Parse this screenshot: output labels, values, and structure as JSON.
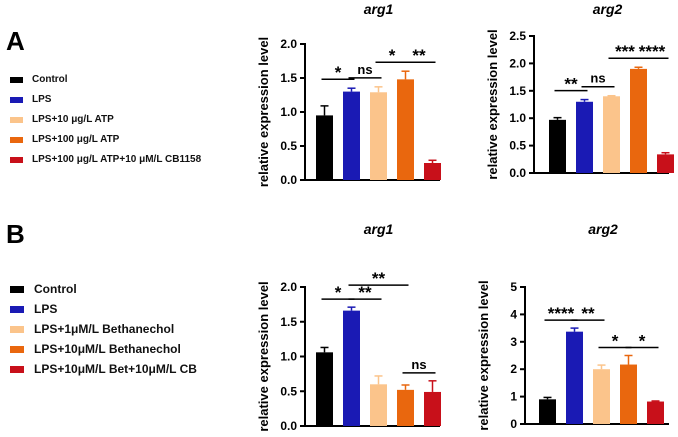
{
  "panels": [
    {
      "letter": "A",
      "legend": [
        {
          "label": "Control",
          "color": "#000000"
        },
        {
          "label": "LPS",
          "color": "#1a1ab4"
        },
        {
          "label": "LPS+10 μg/L ATP",
          "color": "#fbc48b"
        },
        {
          "label": "LPS+100 μg/L ATP",
          "color": "#e9670e"
        },
        {
          "label": "LPS+100 μg/L ATP+10 μM/L CB1158",
          "color": "#c8101a"
        }
      ]
    },
    {
      "letter": "B",
      "legend": [
        {
          "label": "Control",
          "color": "#000000"
        },
        {
          "label": "LPS",
          "color": "#1a1ab4"
        },
        {
          "label": "LPS+1μM/L Bethanechol",
          "color": "#fbc48b"
        },
        {
          "label": "LPS+10μM/L Bethanechol",
          "color": "#e9670e"
        },
        {
          "label": "LPS+10μM/L Bet+10μM/L CB",
          "color": "#c8101a"
        }
      ]
    }
  ],
  "chart_data": [
    {
      "type": "bar",
      "panel": "A",
      "title": "arg1",
      "ylabel": "relative expression level",
      "ylim": [
        0,
        2.0
      ],
      "yticks": [
        0.0,
        0.5,
        1.0,
        1.5,
        2.0
      ],
      "ytick_labels": [
        "0.0",
        "0.5",
        "1.0",
        "1.5",
        "2.0"
      ],
      "values": [
        0.95,
        1.3,
        1.29,
        1.48,
        0.25
      ],
      "errors": [
        0.14,
        0.05,
        0.08,
        0.12,
        0.04
      ],
      "colors": [
        "#000000",
        "#1a1ab4",
        "#fbc48b",
        "#e9670e",
        "#c8101a"
      ],
      "significance": [
        {
          "from": 0,
          "to": 1,
          "label": "*"
        },
        {
          "from": 1,
          "to": 2,
          "label": "ns"
        },
        {
          "from": 2,
          "to": 3,
          "label": "*"
        },
        {
          "from": 3,
          "to": 4,
          "label": "**"
        }
      ]
    },
    {
      "type": "bar",
      "panel": "A",
      "title": "arg2",
      "ylabel": "relative expression level",
      "ylim": [
        0,
        2.5
      ],
      "yticks": [
        0.0,
        0.5,
        1.0,
        1.5,
        2.0,
        2.5
      ],
      "ytick_labels": [
        "0.0",
        "0.5",
        "1.0",
        "1.5",
        "2.0",
        "2.5"
      ],
      "values": [
        0.97,
        1.3,
        1.4,
        1.9,
        0.34
      ],
      "errors": [
        0.04,
        0.04,
        0.01,
        0.03,
        0.03
      ],
      "colors": [
        "#000000",
        "#1a1ab4",
        "#fbc48b",
        "#e9670e",
        "#c8101a"
      ],
      "significance": [
        {
          "from": 0,
          "to": 1,
          "label": "**"
        },
        {
          "from": 1,
          "to": 2,
          "label": "ns"
        },
        {
          "from": 2,
          "to": 3,
          "label": "***"
        },
        {
          "from": 3,
          "to": 4,
          "label": "****"
        }
      ]
    },
    {
      "type": "bar",
      "panel": "B",
      "title": "arg1",
      "ylabel": "relative expression level",
      "ylim": [
        0,
        2.0
      ],
      "yticks": [
        0.0,
        0.5,
        1.0,
        1.5,
        2.0
      ],
      "ytick_labels": [
        "0.0",
        "0.5",
        "1.0",
        "1.5",
        "2.0"
      ],
      "values": [
        1.06,
        1.66,
        0.6,
        0.52,
        0.49
      ],
      "errors": [
        0.07,
        0.05,
        0.12,
        0.07,
        0.16
      ],
      "colors": [
        "#000000",
        "#1a1ab4",
        "#fbc48b",
        "#e9670e",
        "#c8101a"
      ],
      "significance": [
        {
          "from": 0,
          "to": 1,
          "label": "*"
        },
        {
          "from": 1,
          "to": 2,
          "label": "**"
        },
        {
          "from": 1,
          "to": 3,
          "label": "**"
        },
        {
          "from": 3,
          "to": 4,
          "label": "ns"
        }
      ]
    },
    {
      "type": "bar",
      "panel": "B",
      "title": "arg2",
      "ylabel": "relative expression level",
      "ylim": [
        0,
        5
      ],
      "yticks": [
        0,
        1,
        2,
        3,
        4,
        5
      ],
      "ytick_labels": [
        "0",
        "1",
        "2",
        "3",
        "4",
        "5"
      ],
      "values": [
        0.9,
        3.37,
        2.0,
        2.17,
        0.82
      ],
      "errors": [
        0.07,
        0.13,
        0.15,
        0.33,
        0.02
      ],
      "colors": [
        "#000000",
        "#1a1ab4",
        "#fbc48b",
        "#e9670e",
        "#c8101a"
      ],
      "significance": [
        {
          "from": 0,
          "to": 1,
          "label": "****"
        },
        {
          "from": 1,
          "to": 2,
          "label": "**"
        },
        {
          "from": 2,
          "to": 3,
          "label": "*"
        },
        {
          "from": 3,
          "to": 4,
          "label": "*"
        }
      ]
    }
  ]
}
